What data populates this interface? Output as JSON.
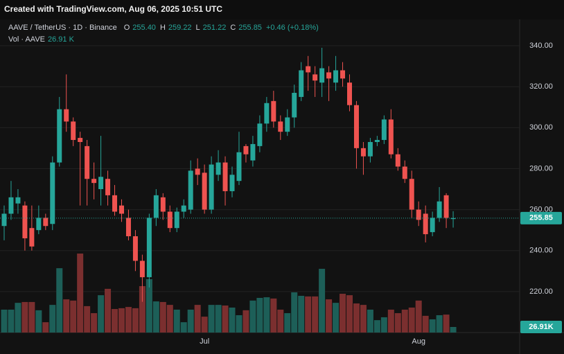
{
  "header": {
    "text": "Created with TradingView.com, Aug 06, 2025 10:51 UTC"
  },
  "chart_data": {
    "type": "candlestick",
    "symbol": "AAVE / TetherUS · 1D · Binance",
    "ohlc_legend": [
      {
        "key": "O",
        "value": "255.40"
      },
      {
        "key": "H",
        "value": "259.22"
      },
      {
        "key": "L",
        "value": "251.22"
      },
      {
        "key": "C",
        "value": "255.85"
      }
    ],
    "change": "+0.46 (+0.18%)",
    "volume_title": "Vol · AAVE",
    "volume_legend": "26.91 K",
    "categories": [
      null,
      null,
      null,
      null,
      null,
      null,
      null,
      null,
      null,
      null,
      null,
      null,
      null,
      null,
      null,
      null,
      null,
      null,
      null,
      null,
      null,
      null,
      null,
      null,
      null,
      null,
      null,
      null,
      null,
      "Jul",
      null,
      null,
      null,
      null,
      null,
      null,
      null,
      null,
      null,
      null,
      null,
      null,
      null,
      null,
      null,
      null,
      null,
      null,
      null,
      null,
      null,
      null,
      null,
      null,
      null,
      null,
      null,
      null,
      null,
      null,
      "Aug",
      null,
      null,
      null,
      null,
      null
    ],
    "open": [
      252,
      258,
      263,
      262,
      251,
      250,
      256,
      253,
      283,
      309,
      303,
      295,
      291,
      275,
      270,
      275,
      267,
      262,
      256,
      247,
      235,
      227,
      256,
      266,
      259,
      251,
      259,
      260,
      280,
      278,
      260,
      277,
      283,
      269,
      274,
      291,
      284,
      291,
      302,
      313,
      303,
      298,
      305,
      315,
      330,
      326,
      322,
      327,
      322,
      328,
      322,
      311,
      290,
      286,
      293,
      294,
      304,
      287,
      281,
      275,
      260,
      258,
      249,
      256,
      267,
      255.4
    ],
    "high": [
      262,
      274,
      270,
      264,
      262,
      262,
      258,
      286,
      315,
      326,
      305,
      298,
      294,
      283,
      296,
      279,
      272,
      265,
      260,
      250,
      238,
      258,
      270,
      268,
      262,
      261,
      265,
      284,
      285,
      282,
      286,
      289,
      286,
      281,
      298,
      292,
      296,
      306,
      315,
      318,
      306,
      309,
      321,
      332,
      335,
      330,
      339,
      330,
      335,
      332,
      326,
      313,
      293,
      295,
      296,
      306,
      309,
      290,
      284,
      279,
      264,
      262,
      259,
      271,
      268,
      259.22
    ],
    "low": [
      245,
      255,
      258,
      240,
      240,
      248,
      250,
      250,
      281,
      298,
      291,
      262,
      262,
      265,
      262,
      262,
      257,
      254,
      245,
      230,
      215,
      222,
      252,
      255,
      249,
      249,
      256,
      258,
      272,
      258,
      258,
      274,
      262,
      266,
      272,
      283,
      281,
      288,
      298,
      300,
      294,
      296,
      300,
      313,
      318,
      315,
      315,
      313,
      318,
      320,
      308,
      280,
      277,
      283,
      291,
      292,
      285,
      279,
      273,
      256,
      252,
      244,
      247,
      254,
      251,
      251.22
    ],
    "close": [
      258,
      266,
      266,
      246,
      242,
      256,
      252,
      283,
      309,
      303,
      294,
      293,
      275,
      273,
      276,
      267,
      259,
      258,
      247,
      235,
      227,
      256,
      267,
      259,
      251,
      259,
      262,
      279,
      277,
      260,
      282,
      283,
      269,
      277,
      288,
      287,
      292,
      302,
      312,
      303,
      298,
      305,
      317,
      328,
      327,
      323,
      329,
      324,
      328,
      324,
      311,
      290,
      286,
      293,
      294,
      304,
      287,
      281,
      275,
      260,
      255,
      248,
      256,
      264,
      256,
      255.85
    ],
    "volume": [
      111,
      111,
      144,
      148,
      148,
      108,
      50,
      134,
      312,
      161,
      155,
      383,
      128,
      94,
      181,
      212,
      114,
      118,
      124,
      118,
      225,
      259,
      151,
      148,
      134,
      111,
      50,
      111,
      134,
      77,
      134,
      134,
      131,
      121,
      84,
      108,
      155,
      168,
      171,
      165,
      111,
      94,
      195,
      178,
      175,
      175,
      309,
      161,
      144,
      188,
      181,
      141,
      134,
      111,
      60,
      74,
      111,
      94,
      111,
      121,
      155,
      81,
      64,
      84,
      87,
      26.91
    ],
    "up_color": "#26a69a",
    "down_color": "#ef5350",
    "volume_up_color": "#1d5f58",
    "volume_down_color": "#7b2f2f",
    "ylim": [
      200,
      352.85
    ],
    "yticks": [
      {
        "value": 220,
        "label": "220.00"
      },
      {
        "value": 240,
        "label": "240.00"
      },
      {
        "value": 260,
        "label": "260.00"
      },
      {
        "value": 280,
        "label": "280.00"
      },
      {
        "value": 300,
        "label": "300.00"
      },
      {
        "value": 320,
        "label": "320.00"
      },
      {
        "value": 340,
        "label": "340.00"
      }
    ],
    "grid": true,
    "last_price": {
      "value": 255.85,
      "label": "255.85"
    },
    "last_volume": {
      "value": 26.91,
      "label": "26.91K"
    }
  }
}
